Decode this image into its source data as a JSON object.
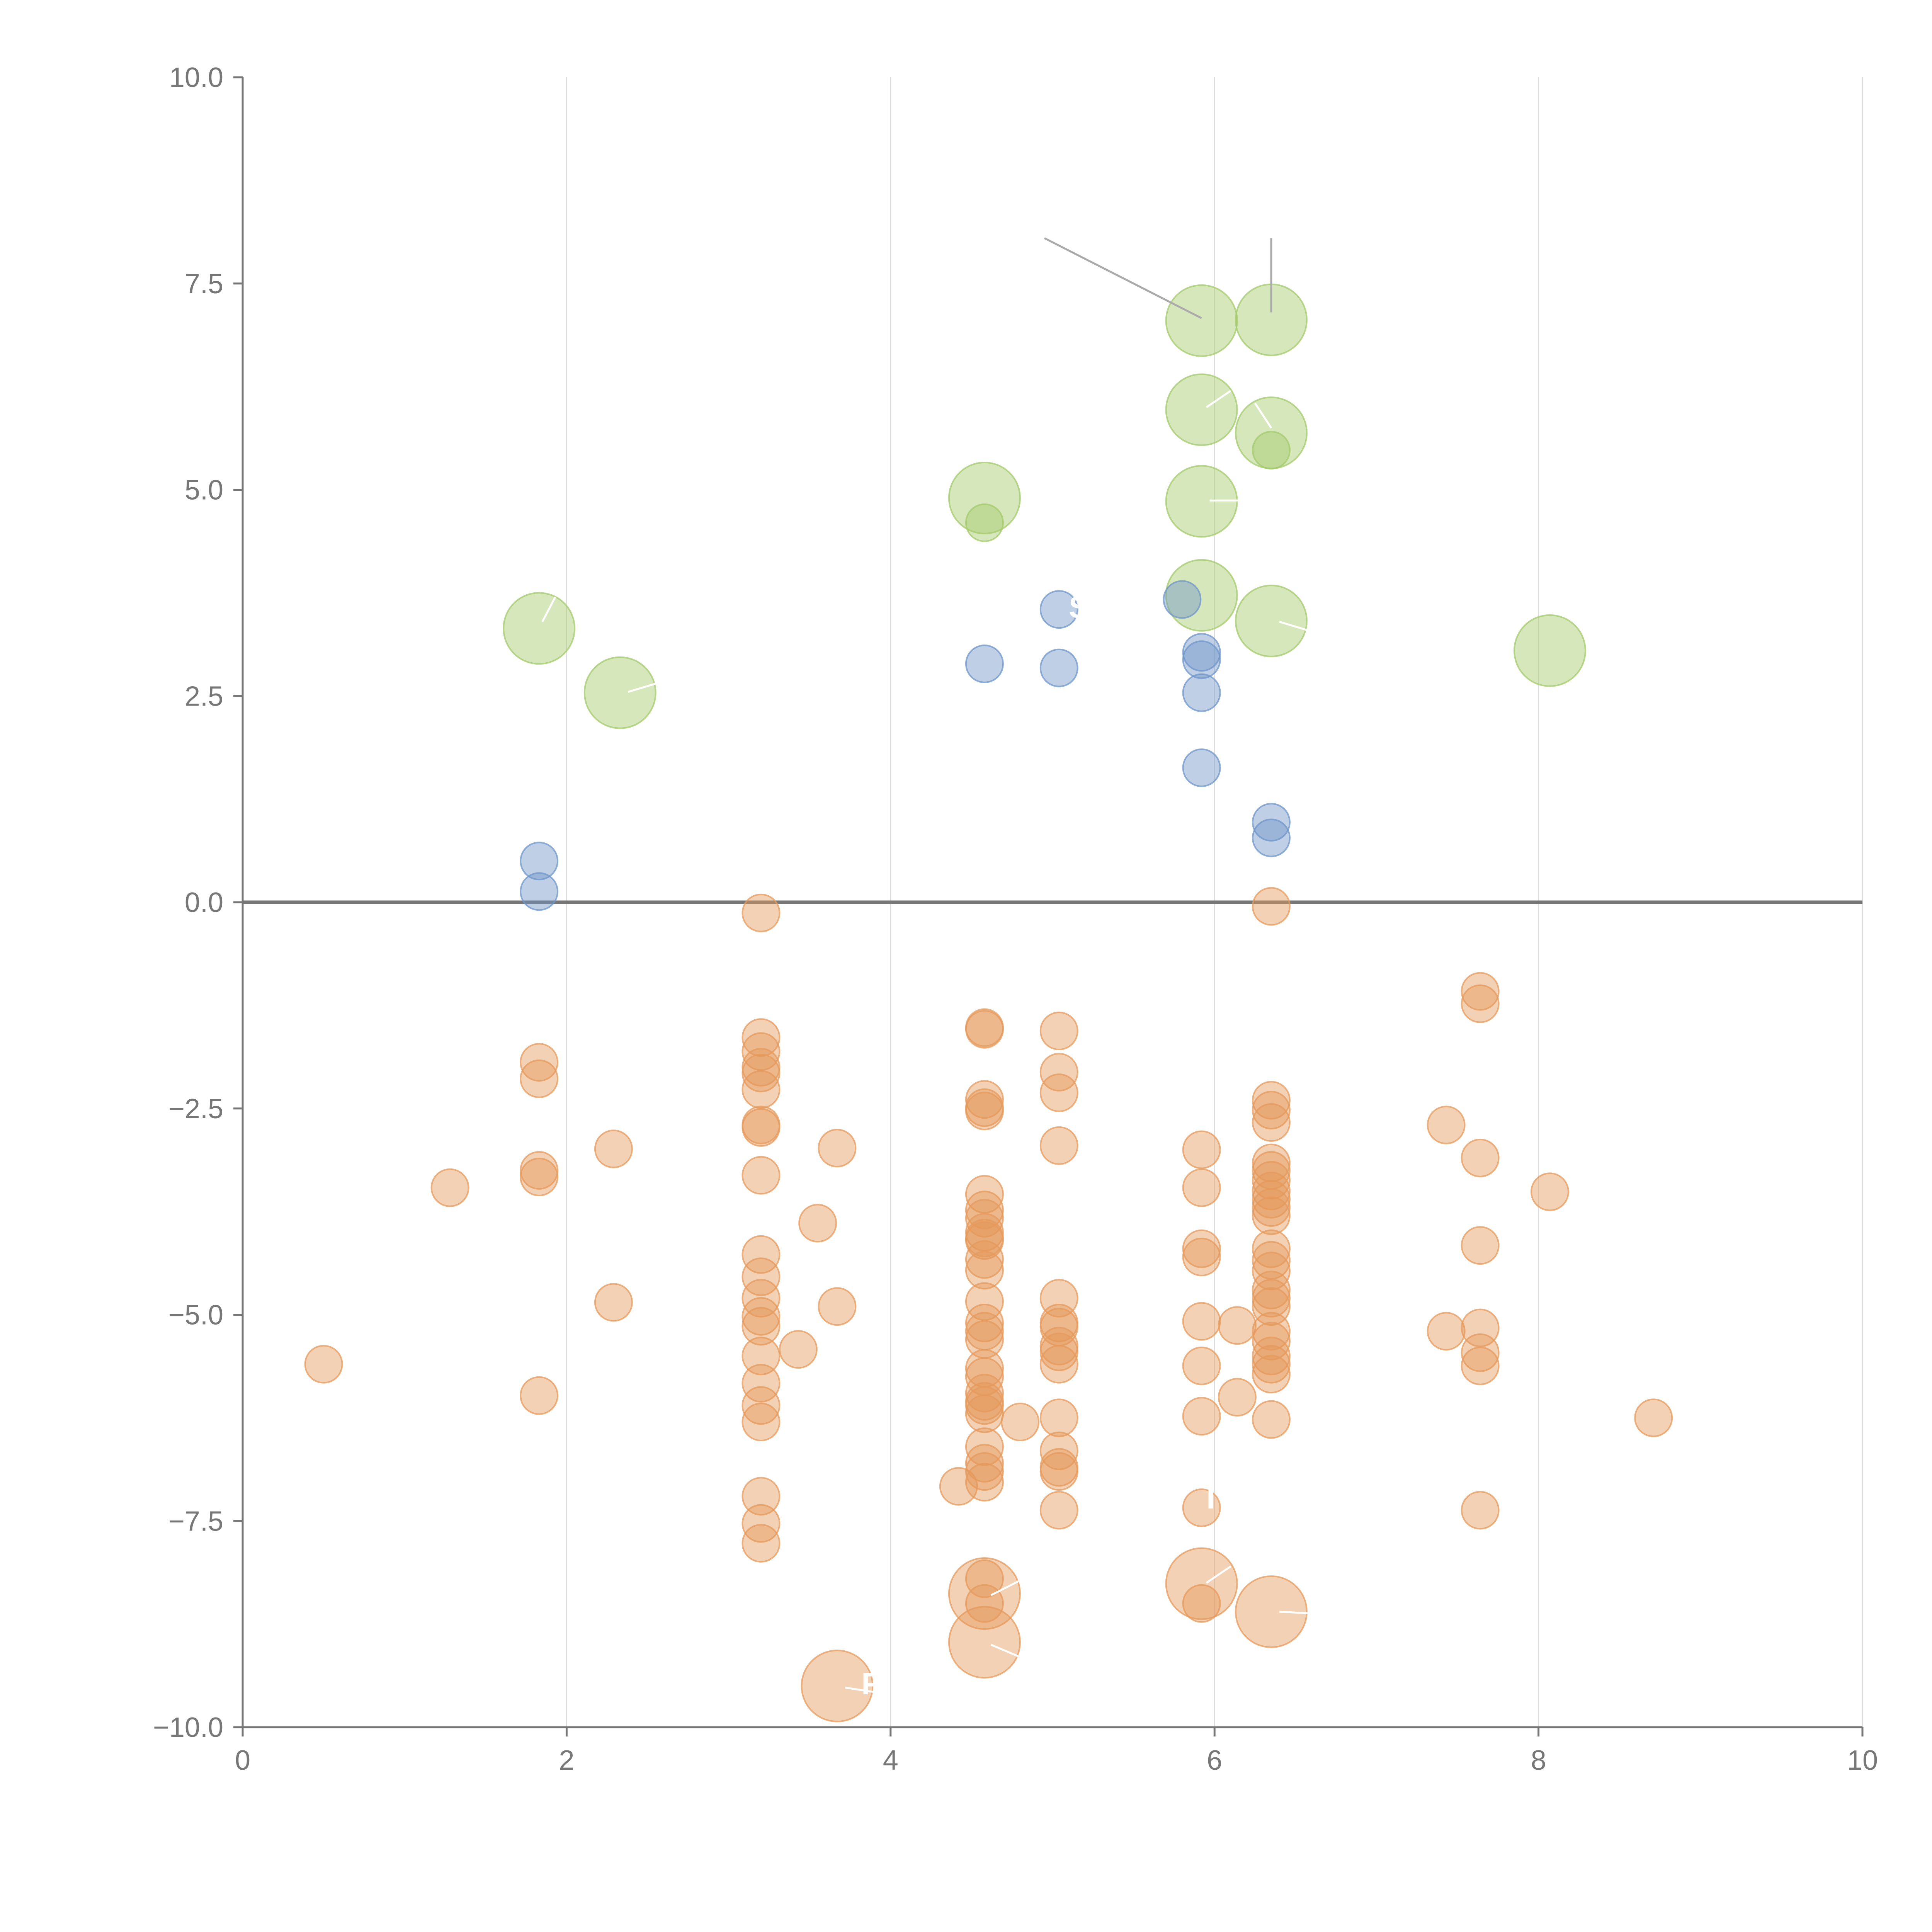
{
  "chart_data": {
    "type": "scatter",
    "title": "",
    "xlabel": "",
    "ylabel": "",
    "xlim": [
      0,
      10
    ],
    "ylim": [
      -10,
      10
    ],
    "x_ticks": [
      0,
      2,
      4,
      6,
      8,
      10
    ],
    "x_tick_labels": [
      "0",
      "2",
      "4",
      "6",
      "8",
      "10"
    ],
    "y_ticks": [
      -10,
      -7.5,
      -5,
      -2.5,
      0,
      2.5,
      5,
      7.5,
      10
    ],
    "y_tick_labels": [
      "−10.0",
      "−7.5",
      "−5.0",
      "−2.5",
      "0.0",
      "2.5",
      "5.0",
      "7.5",
      "10.0"
    ],
    "vertical_gridlines": true,
    "horizontal_gridlines": false,
    "zero_line": true,
    "colors": {
      "green": "#a3c96b",
      "blue": "#6f95c8",
      "orange": "#e59a5c",
      "axis": "#777777",
      "grid": "#dddddd",
      "zero_line": "#777777",
      "leader_line": "#aaaaaa",
      "label_line": "#ffffff"
    },
    "series": [
      {
        "color": "green",
        "size": "large",
        "points": [
          [
            1.83,
            3.32
          ],
          [
            2.33,
            2.54
          ],
          [
            4.58,
            4.9
          ],
          [
            5.92,
            7.05
          ],
          [
            6.35,
            7.06
          ],
          [
            5.92,
            5.97
          ],
          [
            6.35,
            5.69
          ],
          [
            5.92,
            4.86
          ],
          [
            5.92,
            3.72
          ],
          [
            6.35,
            3.41
          ],
          [
            8.07,
            3.05
          ]
        ]
      },
      {
        "color": "green",
        "size": "small",
        "points": [
          [
            4.58,
            4.6
          ],
          [
            6.35,
            5.48
          ]
        ]
      },
      {
        "color": "blue",
        "size": "small",
        "points": [
          [
            1.83,
            0.5
          ],
          [
            1.83,
            0.13
          ],
          [
            4.58,
            2.89
          ],
          [
            5.04,
            3.55
          ],
          [
            5.04,
            2.84
          ],
          [
            5.8,
            3.67
          ],
          [
            5.92,
            3.03
          ],
          [
            5.92,
            2.94
          ],
          [
            5.92,
            2.54
          ],
          [
            5.92,
            1.63
          ],
          [
            6.35,
            0.97
          ],
          [
            6.35,
            0.78
          ]
        ]
      },
      {
        "color": "orange",
        "size": "large",
        "points": [
          [
            4.58,
            -8.38
          ],
          [
            4.58,
            -8.97
          ],
          [
            3.67,
            -9.5
          ],
          [
            5.92,
            -8.26
          ],
          [
            6.35,
            -8.6
          ]
        ]
      },
      {
        "color": "orange",
        "size": "small",
        "points": [
          [
            0.5,
            -5.6
          ],
          [
            1.28,
            -3.46
          ],
          [
            1.83,
            -1.94
          ],
          [
            1.83,
            -2.14
          ],
          [
            1.83,
            -3.25
          ],
          [
            1.83,
            -3.33
          ],
          [
            1.83,
            -5.98
          ],
          [
            2.29,
            -2.99
          ],
          [
            2.29,
            -4.85
          ],
          [
            3.2,
            -0.13
          ],
          [
            3.2,
            -1.64
          ],
          [
            3.2,
            -1.81
          ],
          [
            3.2,
            -2.0
          ],
          [
            3.2,
            -2.07
          ],
          [
            3.2,
            -2.27
          ],
          [
            3.2,
            -2.7
          ],
          [
            3.2,
            -2.73
          ],
          [
            3.2,
            -3.31
          ],
          [
            3.2,
            -4.27
          ],
          [
            3.2,
            -4.54
          ],
          [
            3.2,
            -4.8
          ],
          [
            3.2,
            -5.02
          ],
          [
            3.2,
            -5.14
          ],
          [
            3.2,
            -5.5
          ],
          [
            3.2,
            -5.83
          ],
          [
            3.2,
            -6.1
          ],
          [
            3.2,
            -6.3
          ],
          [
            3.2,
            -7.2
          ],
          [
            3.2,
            -7.53
          ],
          [
            3.2,
            -7.77
          ],
          [
            3.43,
            -5.42
          ],
          [
            3.55,
            -3.89
          ],
          [
            3.67,
            -2.98
          ],
          [
            3.67,
            -4.9
          ],
          [
            4.42,
            -7.08
          ],
          [
            4.58,
            -1.52
          ],
          [
            4.58,
            -1.54
          ],
          [
            4.58,
            -2.39
          ],
          [
            4.58,
            -2.49
          ],
          [
            4.58,
            -2.53
          ],
          [
            4.58,
            -3.54
          ],
          [
            4.58,
            -3.73
          ],
          [
            4.58,
            -3.83
          ],
          [
            4.58,
            -4.0
          ],
          [
            4.58,
            -4.07
          ],
          [
            4.58,
            -4.1
          ],
          [
            4.58,
            -4.33
          ],
          [
            4.58,
            -4.46
          ],
          [
            4.58,
            -4.84
          ],
          [
            4.58,
            -5.1
          ],
          [
            4.58,
            -5.2
          ],
          [
            4.58,
            -5.3
          ],
          [
            4.58,
            -5.65
          ],
          [
            4.58,
            -5.75
          ],
          [
            4.58,
            -5.95
          ],
          [
            4.58,
            -6.05
          ],
          [
            4.58,
            -6.1
          ],
          [
            4.58,
            -6.2
          ],
          [
            4.58,
            -6.6
          ],
          [
            4.58,
            -6.8
          ],
          [
            4.58,
            -6.9
          ],
          [
            4.58,
            -7.03
          ],
          [
            4.58,
            -8.2
          ],
          [
            4.58,
            -8.5
          ],
          [
            4.8,
            -6.3
          ],
          [
            5.04,
            -1.56
          ],
          [
            5.04,
            -2.06
          ],
          [
            5.04,
            -2.31
          ],
          [
            5.04,
            -2.95
          ],
          [
            5.04,
            -4.8
          ],
          [
            5.04,
            -5.1
          ],
          [
            5.04,
            -5.15
          ],
          [
            5.04,
            -5.38
          ],
          [
            5.04,
            -5.45
          ],
          [
            5.04,
            -5.6
          ],
          [
            5.04,
            -6.25
          ],
          [
            5.04,
            -6.65
          ],
          [
            5.04,
            -6.85
          ],
          [
            5.04,
            -6.9
          ],
          [
            5.04,
            -7.37
          ],
          [
            5.92,
            -3.0
          ],
          [
            5.92,
            -3.46
          ],
          [
            5.92,
            -4.2
          ],
          [
            5.92,
            -4.3
          ],
          [
            5.92,
            -5.08
          ],
          [
            5.92,
            -5.62
          ],
          [
            5.92,
            -6.23
          ],
          [
            5.92,
            -7.34
          ],
          [
            5.92,
            -8.5
          ],
          [
            6.14,
            -5.13
          ],
          [
            6.14,
            -6.0
          ],
          [
            6.35,
            -0.05
          ],
          [
            6.35,
            -2.4
          ],
          [
            6.35,
            -2.52
          ],
          [
            6.35,
            -2.67
          ],
          [
            6.35,
            -3.16
          ],
          [
            6.35,
            -3.25
          ],
          [
            6.35,
            -3.37
          ],
          [
            6.35,
            -3.5
          ],
          [
            6.35,
            -3.6
          ],
          [
            6.35,
            -3.7
          ],
          [
            6.35,
            -3.8
          ],
          [
            6.35,
            -4.2
          ],
          [
            6.35,
            -4.34
          ],
          [
            6.35,
            -4.47
          ],
          [
            6.35,
            -4.7
          ],
          [
            6.35,
            -4.8
          ],
          [
            6.35,
            -4.9
          ],
          [
            6.35,
            -5.2
          ],
          [
            6.35,
            -5.32
          ],
          [
            6.35,
            -5.5
          ],
          [
            6.35,
            -5.6
          ],
          [
            6.35,
            -5.72
          ],
          [
            6.35,
            -6.27
          ],
          [
            7.43,
            -2.7
          ],
          [
            7.43,
            -5.2
          ],
          [
            7.64,
            -1.08
          ],
          [
            7.64,
            -1.23
          ],
          [
            7.64,
            -3.1
          ],
          [
            7.64,
            -4.16
          ],
          [
            7.64,
            -5.16
          ],
          [
            7.64,
            -5.46
          ],
          [
            7.64,
            -5.62
          ],
          [
            7.64,
            -7.37
          ],
          [
            8.07,
            -3.51
          ],
          [
            8.71,
            -6.25
          ]
        ]
      }
    ],
    "leader_lines": [
      {
        "color": "leader_line",
        "from": [
          4.95,
          8.05
        ],
        "to": [
          5.92,
          7.08
        ]
      },
      {
        "color": "leader_line",
        "from": [
          6.35,
          8.05
        ],
        "to": [
          6.35,
          7.15
        ]
      },
      {
        "color": "label_line",
        "from": [
          1.93,
          3.7
        ],
        "to": [
          1.85,
          3.4
        ]
      },
      {
        "color": "label_line",
        "from": [
          2.55,
          2.65
        ],
        "to": [
          2.38,
          2.55
        ]
      },
      {
        "color": "label_line",
        "from": [
          6.1,
          6.2
        ],
        "to": [
          5.95,
          6.0
        ]
      },
      {
        "color": "label_line",
        "from": [
          6.25,
          6.05
        ],
        "to": [
          6.35,
          5.75
        ]
      },
      {
        "color": "label_line",
        "from": [
          6.15,
          4.87
        ],
        "to": [
          5.97,
          4.87
        ]
      },
      {
        "color": "label_line",
        "from": [
          6.57,
          3.3
        ],
        "to": [
          6.4,
          3.4
        ]
      },
      {
        "color": "label_line",
        "from": [
          4.82,
          -8.2
        ],
        "to": [
          4.62,
          -8.4
        ]
      },
      {
        "color": "label_line",
        "from": [
          4.8,
          -9.15
        ],
        "to": [
          4.62,
          -9.0
        ]
      },
      {
        "color": "label_line",
        "from": [
          3.92,
          -9.58
        ],
        "to": [
          3.72,
          -9.52
        ]
      },
      {
        "color": "label_line",
        "from": [
          6.1,
          -8.05
        ],
        "to": [
          5.95,
          -8.25
        ]
      },
      {
        "color": "label_line",
        "from": [
          6.6,
          -8.62
        ],
        "to": [
          6.4,
          -8.6
        ]
      }
    ],
    "annotations": [
      {
        "text": "S",
        "x": 5.1,
        "y": 3.45
      },
      {
        "text": "F",
        "x": 3.82,
        "y": -9.6
      },
      {
        "text": "I",
        "x": 5.95,
        "y": -7.35
      }
    ]
  }
}
